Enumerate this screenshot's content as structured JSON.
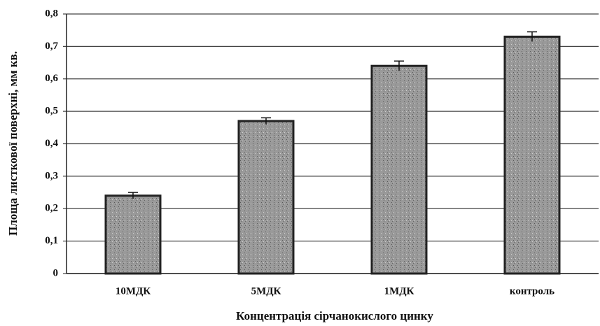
{
  "chart_data": {
    "type": "bar",
    "categories": [
      "10МДК",
      "5МДК",
      "1МДК",
      "контроль"
    ],
    "values": [
      0.24,
      0.47,
      0.64,
      0.73
    ],
    "errors": [
      0.01,
      0.01,
      0.015,
      0.015
    ],
    "color": "#8c8c8c",
    "ylim": [
      0,
      0.8
    ],
    "yticks": [
      0,
      {
        "value": 0.1,
        "label": "0,1"
      },
      {
        "value": 0.2,
        "label": "0,2"
      },
      {
        "value": 0.3,
        "label": "0,3"
      },
      {
        "value": 0.4,
        "label": "0,4"
      },
      {
        "value": 0.5,
        "label": "0,5"
      },
      {
        "value": 0.6,
        "label": "0,6"
      },
      {
        "value": 0.7,
        "label": "0,7"
      },
      {
        "value": 0.8,
        "label": "0,8"
      }
    ],
    "grid": true,
    "xlabel": "Концентрація сірчанокислого цинку",
    "ylabel": "Площа листкової поверхні, мм кв."
  }
}
